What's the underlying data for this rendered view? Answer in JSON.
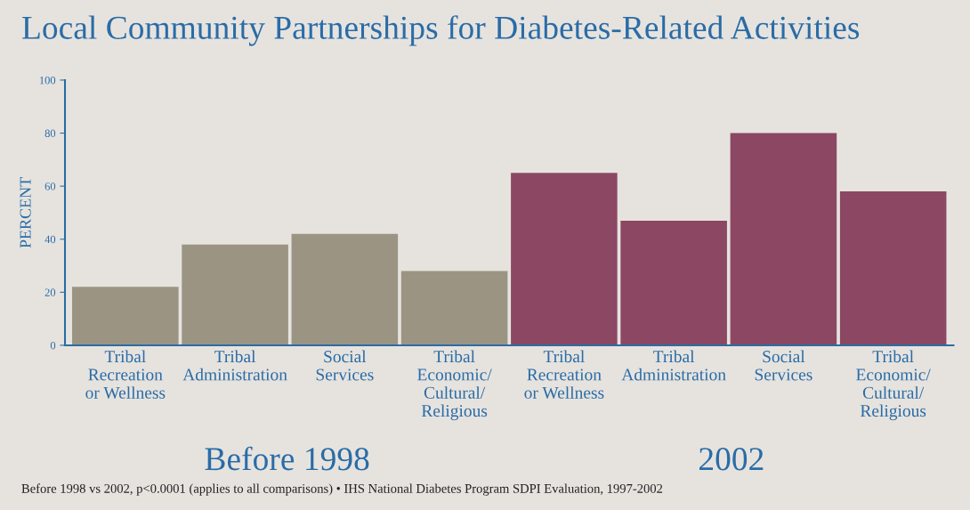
{
  "chart_data": {
    "type": "bar",
    "title": "Local Community Partnerships for Diabetes-Related Activities",
    "ylabel": "PERCENT",
    "categories": [
      "Tribal\nRecreation\nor Wellness",
      "Tribal\nAdministration",
      "Social\nServices",
      "Tribal\nEconomic/\nCultural/\nReligious",
      "Tribal\nRecreation\nor Wellness",
      "Tribal\nAdministration",
      "Social\nServices",
      "Tribal\nEconomic/\nCultural/\nReligious"
    ],
    "values": [
      22,
      38,
      42,
      28,
      65,
      47,
      80,
      58
    ],
    "colors": [
      "#9b9482",
      "#9b9482",
      "#9b9482",
      "#9b9482",
      "#8c4763",
      "#8c4763",
      "#8c4763",
      "#8c4763"
    ],
    "ylim": [
      0,
      100
    ],
    "yticks": [
      0,
      20,
      40,
      60,
      80,
      100
    ],
    "grid": false,
    "legend": false,
    "annotations": [
      "Before 1998",
      "2002",
      "Before 1998 vs 2002, p<0.0001 (applies to all comparisons) • IHS National Diabetes Program SDPI Evaluation, 1997-2002"
    ]
  }
}
